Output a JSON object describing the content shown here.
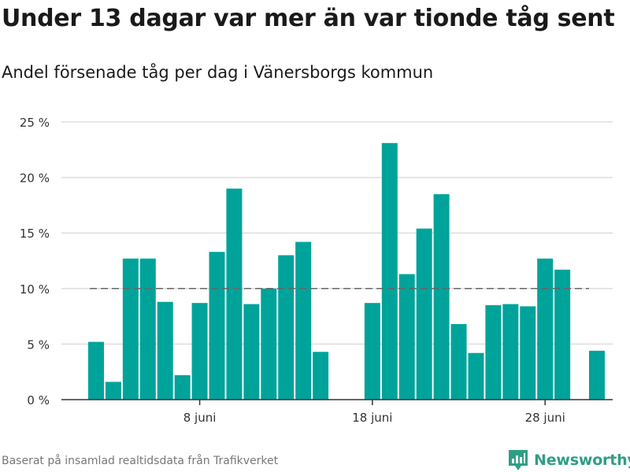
{
  "title": "Under 13 dagar var mer än var tionde tåg sent",
  "subtitle": "Andel försenade tåg per dag i Vänersborgs kommun",
  "source": "Baserat på insamlad realtidsdata från Trafikverket",
  "brand": "Newsworthy",
  "colors": {
    "bar": "#00a39a",
    "grid": "#dddddd",
    "reference": "#666666",
    "axis": "#333333",
    "brand": "#2f9e86"
  },
  "chart_data": {
    "type": "bar",
    "x_start_day": 2,
    "x_month": "juni",
    "values": [
      5.2,
      1.6,
      12.7,
      12.7,
      8.8,
      2.2,
      8.7,
      13.3,
      19.0,
      8.6,
      10.0,
      13.0,
      14.2,
      4.3,
      null,
      null,
      8.7,
      23.1,
      11.3,
      15.4,
      18.5,
      6.8,
      4.2,
      8.5,
      8.6,
      8.4,
      12.7,
      11.7,
      null,
      4.4
    ],
    "ylim": [
      0,
      25
    ],
    "yticks": [
      0,
      5,
      10,
      15,
      20,
      25
    ],
    "ytick_labels": [
      "0 %",
      "5 %",
      "10 %",
      "15 %",
      "20 %",
      "25 %"
    ],
    "xticks": [
      8,
      18,
      28
    ],
    "xtick_labels": [
      "8 juni",
      "18 juni",
      "28 juni"
    ],
    "reference_line": 10,
    "grid": true,
    "legend": "none"
  }
}
